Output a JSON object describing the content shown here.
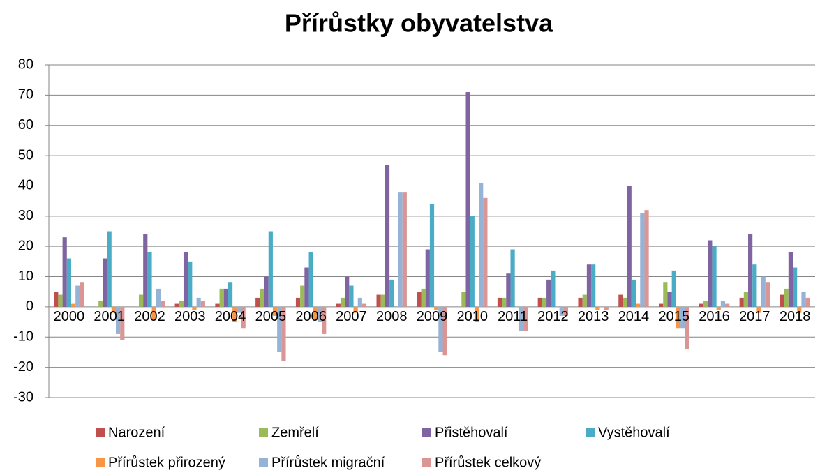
{
  "chart_data": {
    "type": "bar",
    "title": "Přírůstky obyvatelstva",
    "categories": [
      "2000",
      "2001",
      "2002",
      "2003",
      "2004",
      "2005",
      "2006",
      "2007",
      "2008",
      "2009",
      "2010",
      "2011",
      "2012",
      "2013",
      "2014",
      "2015",
      "2016",
      "2017",
      "2018"
    ],
    "series": [
      {
        "name": "Narození",
        "color": "#c0504d",
        "values": [
          5,
          0,
          0,
          1,
          1,
          3,
          3,
          1,
          4,
          5,
          0,
          3,
          3,
          3,
          4,
          1,
          1,
          3,
          4
        ]
      },
      {
        "name": "Zemřelí",
        "color": "#9bbb59",
        "values": [
          4,
          2,
          4,
          2,
          6,
          6,
          7,
          3,
          4,
          6,
          5,
          3,
          3,
          4,
          3,
          8,
          2,
          5,
          6
        ]
      },
      {
        "name": "Přistěhovalí",
        "color": "#8064a2",
        "values": [
          23,
          16,
          24,
          18,
          6,
          10,
          13,
          10,
          47,
          19,
          71,
          11,
          9,
          14,
          40,
          5,
          22,
          24,
          18
        ]
      },
      {
        "name": "Vystěhovalí",
        "color": "#4bacc6",
        "values": [
          16,
          25,
          18,
          15,
          8,
          25,
          18,
          7,
          9,
          34,
          30,
          19,
          12,
          14,
          9,
          12,
          20,
          14,
          13
        ]
      },
      {
        "name": "Přírůstek přirozený",
        "color": "#f79646",
        "values": [
          1,
          -2,
          -4,
          -1,
          -5,
          -3,
          -4,
          -2,
          0,
          -1,
          -5,
          0,
          0,
          -1,
          1,
          -7,
          -1,
          -2,
          -2
        ]
      },
      {
        "name": "Přírůstek migrační",
        "color": "#95b3d7",
        "values": [
          7,
          -9,
          6,
          3,
          -2,
          -15,
          -5,
          3,
          38,
          -15,
          41,
          -8,
          -3,
          0,
          31,
          -7,
          2,
          10,
          5
        ]
      },
      {
        "name": "Přírůstek celkový",
        "color": "#d99694",
        "values": [
          8,
          -11,
          2,
          2,
          -7,
          -18,
          -9,
          1,
          38,
          -16,
          36,
          -8,
          -3,
          -1,
          32,
          -14,
          1,
          8,
          3
        ]
      }
    ],
    "ylim": [
      -30,
      80
    ],
    "yticks": [
      -30,
      -20,
      -10,
      0,
      10,
      20,
      30,
      40,
      50,
      60,
      70,
      80
    ],
    "grid": true,
    "legend": "bottom"
  }
}
